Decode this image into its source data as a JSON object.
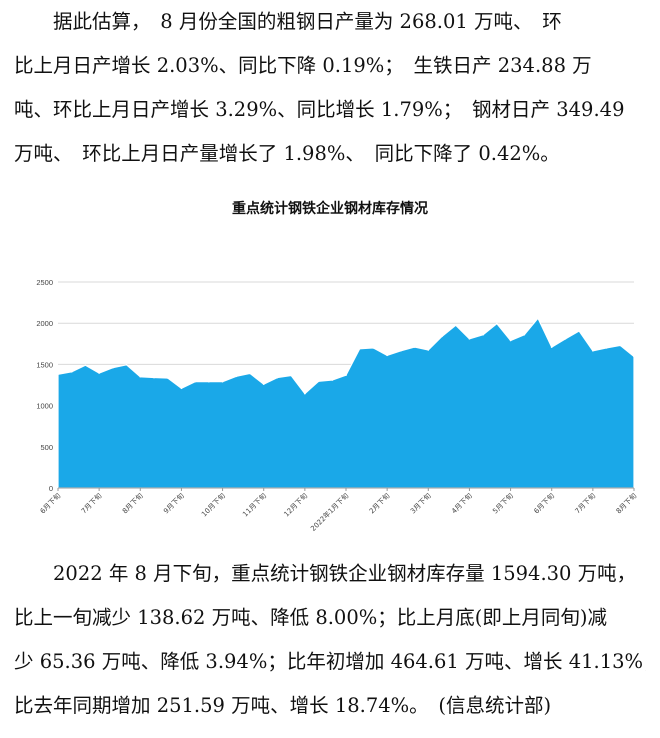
{
  "paragraph1": {
    "lines": [
      "　　据此估算，　8 月份全国的粗钢日产量为 268.01 万吨、　环",
      "比上月日产增长 2.03%、同比下降 0.19%；　生铁日产 234.88 万",
      "吨、环比上月日产增长 3.29%、同比增长 1.79%；　钢材日产 349.49",
      "万吨、　环比上月日产量增长了 1.98%、　同比下降了 0.42%。"
    ]
  },
  "chart_title": "重点统计钢铁企业钢材库存情况",
  "chart_data": {
    "type": "area",
    "title": "重点统计钢铁企业钢材库存情况",
    "ylim": [
      0,
      2500
    ],
    "yticks": [
      0,
      500,
      1000,
      1500,
      2000,
      2500
    ],
    "grid": true,
    "color": "#1aa8e8",
    "x_labels": [
      "6月下旬",
      "7月下旬",
      "8月下旬",
      "9月下旬",
      "10月下旬",
      "11月下旬",
      "12月下旬",
      "2022年1月下旬",
      "2月下旬",
      "3月下旬",
      "4月下旬",
      "5月下旬",
      "6月下旬",
      "7月下旬",
      "8月下旬"
    ],
    "values": [
      1380,
      1410,
      1490,
      1395,
      1460,
      1495,
      1350,
      1340,
      1335,
      1210,
      1290,
      1290,
      1290,
      1355,
      1390,
      1260,
      1340,
      1365,
      1145,
      1295,
      1310,
      1370,
      1690,
      1700,
      1610,
      1665,
      1710,
      1675,
      1840,
      1975,
      1810,
      1860,
      1995,
      1790,
      1860,
      2060,
      1710,
      1810,
      1905,
      1665,
      1700,
      1730,
      1595
    ]
  },
  "paragraph2": {
    "lines": [
      "　　2022 年 8 月下旬，重点统计钢铁企业钢材库存量 1594.30 万吨，",
      "比上一旬减少 138.62 万吨、降低 8.00%；比上月底(即上月同旬)减",
      "少 65.36 万吨、降低 3.94%；比年初增加 464.61 万吨、增长 41.13%；",
      "比去年同期增加 251.59 万吨、增长 18.74%。　(信息统计部)"
    ]
  }
}
